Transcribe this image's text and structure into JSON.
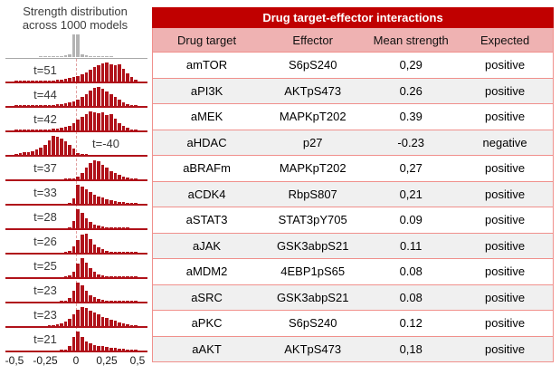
{
  "figure": {
    "panel_title_line1": "Strength distribution",
    "panel_title_line2": "across 1000 models"
  },
  "colors": {
    "bar_red": "#b0121a",
    "null_gray": "#b3b3b3",
    "baseline_gray": "#a9a9a9",
    "title_bg": "#c00000",
    "header_bg": "#efb2b2",
    "border_salmon": "#f0908c",
    "alt_row_gray": "#f0f0f0",
    "zero_line_pink": "#e2a1a1"
  },
  "chart_data": [
    {
      "type": "bar",
      "subtype": "histogram-small-multiples",
      "title": "Strength distribution across 1000 models",
      "x_range": [
        -0.5,
        0.5
      ],
      "x_ticks": [
        "-0,5",
        "-0,25",
        "0",
        "0,25",
        "0,5"
      ],
      "zero_line": "dashed at 0",
      "rows": [
        {
          "label": "",
          "series": "null-distribution",
          "color": "gray",
          "label_side": "none",
          "bins": [
            0,
            0,
            0,
            0,
            0,
            0,
            0.01,
            0.02,
            0.02,
            0.03,
            0.04,
            0.05,
            0.08,
            0.14,
            1,
            1,
            0.14,
            0.08,
            0.05,
            0.04,
            0.03,
            0.02,
            0.02,
            0.01,
            0,
            0,
            0,
            0,
            0,
            0
          ]
        },
        {
          "label": "t=51",
          "color": "red",
          "label_side": "left",
          "bins": [
            0.03,
            0.02,
            0.03,
            0.03,
            0.04,
            0.04,
            0.05,
            0.05,
            0.06,
            0.07,
            0.08,
            0.1,
            0.13,
            0.17,
            0.22,
            0.28,
            0.38,
            0.5,
            0.62,
            0.75,
            0.88,
            0.95,
            1,
            0.93,
            0.85,
            0.9,
            0.68,
            0.45,
            0.25,
            0.1
          ]
        },
        {
          "label": "t=44",
          "color": "red",
          "label_side": "left",
          "bins": [
            0.02,
            0.02,
            0.03,
            0.03,
            0.03,
            0.04,
            0.04,
            0.05,
            0.06,
            0.07,
            0.08,
            0.1,
            0.13,
            0.17,
            0.24,
            0.33,
            0.48,
            0.63,
            0.8,
            0.95,
            1,
            0.9,
            0.78,
            0.62,
            0.47,
            0.33,
            0.21,
            0.12,
            0.06,
            0.03
          ]
        },
        {
          "label": "t=42",
          "color": "red",
          "label_side": "left",
          "bins": [
            0.02,
            0.02,
            0.02,
            0.03,
            0.03,
            0.04,
            0.05,
            0.06,
            0.07,
            0.09,
            0.11,
            0.14,
            0.18,
            0.26,
            0.4,
            0.56,
            0.72,
            0.88,
            1,
            0.96,
            0.9,
            0.95,
            0.82,
            0.88,
            0.62,
            0.4,
            0.24,
            0.13,
            0.07,
            0.03
          ]
        },
        {
          "label": "t=-40",
          "color": "red",
          "label_side": "right",
          "bins": [
            0.07,
            0.1,
            0.13,
            0.16,
            0.2,
            0.27,
            0.38,
            0.52,
            0.75,
            1,
            0.95,
            0.85,
            0.7,
            0.52,
            0.33,
            0.12,
            0.04,
            0.02,
            0,
            0,
            0,
            0,
            0,
            0,
            0,
            0,
            0,
            0,
            0,
            0
          ]
        },
        {
          "label": "t=37",
          "color": "red",
          "label_side": "left",
          "bins": [
            0,
            0,
            0,
            0,
            0,
            0,
            0,
            0,
            0,
            0,
            0,
            0,
            0.01,
            0.02,
            0.05,
            0.15,
            0.35,
            0.6,
            0.85,
            1,
            0.95,
            0.78,
            0.6,
            0.45,
            0.32,
            0.22,
            0.14,
            0.09,
            0.05,
            0.02
          ]
        },
        {
          "label": "t=33",
          "color": "red",
          "label_side": "left",
          "bins": [
            0,
            0,
            0,
            0,
            0,
            0,
            0,
            0,
            0,
            0,
            0,
            0,
            0,
            0.02,
            0.3,
            1,
            0.92,
            0.76,
            0.62,
            0.5,
            0.4,
            0.32,
            0.25,
            0.19,
            0.15,
            0.11,
            0.08,
            0.06,
            0.04,
            0.03
          ]
        },
        {
          "label": "t=28",
          "color": "red",
          "label_side": "left",
          "bins": [
            0,
            0,
            0,
            0,
            0,
            0,
            0,
            0,
            0,
            0,
            0,
            0,
            0,
            0.03,
            0.4,
            1,
            0.8,
            0.52,
            0.33,
            0.2,
            0.13,
            0.08,
            0.05,
            0.04,
            0.03,
            0.02,
            0.01,
            0.01,
            0,
            0
          ]
        },
        {
          "label": "t=26",
          "color": "red",
          "label_side": "left",
          "bins": [
            0,
            0,
            0,
            0,
            0,
            0,
            0,
            0,
            0,
            0,
            0,
            0,
            0.04,
            0.12,
            0.35,
            0.68,
            0.96,
            1,
            0.7,
            0.45,
            0.28,
            0.17,
            0.11,
            0.07,
            0.05,
            0.03,
            0.02,
            0.02,
            0.01,
            0.01
          ]
        },
        {
          "label": "t=25",
          "color": "red",
          "label_side": "left",
          "bins": [
            0,
            0,
            0,
            0,
            0,
            0,
            0,
            0,
            0,
            0,
            0,
            0,
            0.02,
            0.08,
            0.3,
            0.72,
            1,
            0.78,
            0.48,
            0.27,
            0.15,
            0.09,
            0.06,
            0.04,
            0.03,
            0.02,
            0.02,
            0.01,
            0.01,
            0.01
          ]
        },
        {
          "label": "t=23",
          "color": "red",
          "label_side": "left",
          "bins": [
            0,
            0,
            0,
            0,
            0,
            0,
            0,
            0,
            0,
            0,
            0,
            0.02,
            0.05,
            0.2,
            0.55,
            1,
            0.85,
            0.55,
            0.35,
            0.22,
            0.14,
            0.09,
            0.06,
            0.04,
            0.03,
            0.02,
            0.02,
            0.01,
            0.01,
            0.01
          ]
        },
        {
          "label": "t=23",
          "color": "red",
          "label_side": "left",
          "bins": [
            0,
            0,
            0,
            0,
            0,
            0,
            0,
            0,
            0.03,
            0.05,
            0.08,
            0.13,
            0.22,
            0.38,
            0.6,
            0.85,
            1,
            0.94,
            0.8,
            0.7,
            0.6,
            0.5,
            0.42,
            0.34,
            0.27,
            0.2,
            0.14,
            0.09,
            0.05,
            0.03
          ]
        },
        {
          "label": "t=21",
          "color": "red",
          "label_side": "left",
          "bins": [
            0,
            0,
            0,
            0,
            0,
            0,
            0,
            0,
            0,
            0,
            0,
            0.01,
            0.06,
            0.25,
            0.72,
            1,
            0.74,
            0.5,
            0.38,
            0.3,
            0.26,
            0.22,
            0.19,
            0.16,
            0.13,
            0.11,
            0.09,
            0.07,
            0.05,
            0.03
          ]
        }
      ]
    },
    {
      "type": "table",
      "title": "Drug target-effector interactions",
      "columns": [
        "Drug target",
        "Effector",
        "Mean strength",
        "Expected"
      ],
      "rows": [
        [
          "amTOR",
          "S6pS240",
          "0,29",
          "positive"
        ],
        [
          "aPI3K",
          "AKTpS473",
          "0.26",
          "positive"
        ],
        [
          "aMEK",
          "MAPKpT202",
          "0.39",
          "positive"
        ],
        [
          "aHDAC",
          "p27",
          "-0.23",
          "negative"
        ],
        [
          "aBRAFm",
          "MAPKpT202",
          "0,27",
          "positive"
        ],
        [
          "aCDK4",
          "RbpS807",
          "0,21",
          "positive"
        ],
        [
          "aSTAT3",
          "STAT3pY705",
          "0.09",
          "positive"
        ],
        [
          "aJAK",
          "GSK3abpS21",
          "0.11",
          "positive"
        ],
        [
          "aMDM2",
          "4EBP1pS65",
          "0.08",
          "positive"
        ],
        [
          "aSRC",
          "GSK3abpS21",
          "0.08",
          "positive"
        ],
        [
          "aPKC",
          "S6pS240",
          "0.12",
          "positive"
        ],
        [
          "aAKT",
          "AKTpS473",
          "0,18",
          "positive"
        ]
      ]
    }
  ]
}
